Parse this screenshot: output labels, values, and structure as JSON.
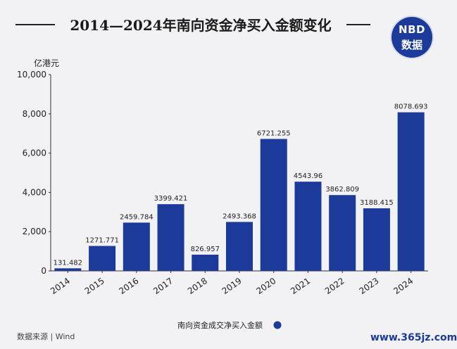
{
  "title": "2014—2024年南向资金净买入金额变化",
  "logo": {
    "line1": "NBD",
    "line2": "数据"
  },
  "source": "数据来源 | Wind",
  "footer_url": "www.365jz.com",
  "colors": {
    "bar": "#1b3a9a",
    "axis": "#333333",
    "text": "#222222"
  },
  "chart_data": {
    "type": "bar",
    "title": "2014—2024年南向资金净买入金额变化",
    "ylabel": "亿港元",
    "xlabel": "",
    "categories": [
      "2014",
      "2015",
      "2016",
      "2017",
      "2018",
      "2019",
      "2020",
      "2021",
      "2022",
      "2023",
      "2024"
    ],
    "series": [
      {
        "name": "南向资金成交净买入金额",
        "values": [
          131.482,
          1271.771,
          2459.784,
          3399.421,
          826.957,
          2493.368,
          6721.255,
          4543.96,
          3862.809,
          3188.415,
          8078.693
        ],
        "labels": [
          "131.482",
          "1271.771",
          "2459.784",
          "3399.421",
          "826.957",
          "2493.368",
          "6721.255",
          "4543.96",
          "3862.809",
          "3188.415",
          "8078.693"
        ]
      }
    ],
    "ylim": [
      0,
      10000
    ],
    "yticks": [
      0,
      2000,
      4000,
      6000,
      8000,
      10000
    ],
    "ytick_labels": [
      "0",
      "2,000",
      "4,000",
      "6,000",
      "8,000",
      "10,000"
    ],
    "grid": false,
    "legend_position": "bottom-center"
  }
}
